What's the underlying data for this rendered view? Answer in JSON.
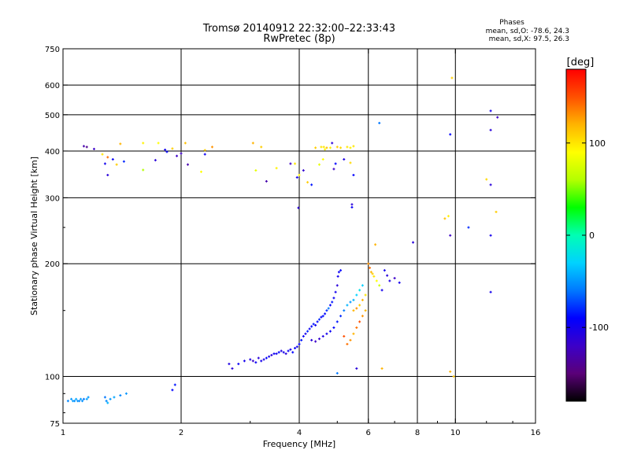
{
  "header": {
    "title": "Tromsø 20140912 22:32:00–22:33:43",
    "subtitle": "RwPretec (8p)",
    "phases_title": "Phases",
    "phases_o": "mean, sd,O:  -78.6,  24.3",
    "phases_x": "mean, sd,X:   97.5,  26.3"
  },
  "colorbar": {
    "label": "[deg]",
    "ticks": [
      {
        "value": 100,
        "label": "100"
      },
      {
        "value": 0,
        "label": "0"
      },
      {
        "value": -100,
        "label": "-100"
      }
    ],
    "range": [
      -180,
      180
    ],
    "stops": [
      "#000000",
      "#5a0078",
      "#3c00c8",
      "#0000ff",
      "#0078ff",
      "#00d2ff",
      "#00ffb4",
      "#00ff00",
      "#b4ff00",
      "#ffff00",
      "#ffb400",
      "#ff5000",
      "#ff0000"
    ]
  },
  "chart_data": {
    "type": "scatter",
    "title": "Tromsø 20140912 22:32:00–22:33:43",
    "subtitle": "RwPretec (8p)",
    "xlabel": "Frequency [MHz]",
    "ylabel": "Stationary phase Virtual Height [km]",
    "xscale": "log",
    "yscale": "log",
    "xlim": [
      1,
      16
    ],
    "ylim": [
      75,
      750
    ],
    "xticks": [
      {
        "value": 1,
        "label": "1"
      },
      {
        "value": 2,
        "label": "2"
      },
      {
        "value": 4,
        "label": "4"
      },
      {
        "value": 6,
        "label": "6"
      },
      {
        "value": 8,
        "label": "8"
      },
      {
        "value": 10,
        "label": "10"
      },
      {
        "value": 16,
        "label": "16"
      }
    ],
    "yticks": [
      {
        "value": 75,
        "label": "75"
      },
      {
        "value": 100,
        "label": "100"
      },
      {
        "value": 200,
        "label": "200"
      },
      {
        "value": 300,
        "label": "300"
      },
      {
        "value": 400,
        "label": "400"
      },
      {
        "value": 500,
        "label": "500"
      },
      {
        "value": 600,
        "label": "600"
      },
      {
        "value": 750,
        "label": "750"
      }
    ],
    "grid_x": [
      2,
      4,
      6,
      8,
      10
    ],
    "grid_y": [
      100,
      200,
      300,
      400,
      500,
      600
    ],
    "color_scale": "phase [deg], rainbow -180 to 180",
    "points": [
      [
        1.03,
        86,
        -55
      ],
      [
        1.05,
        87,
        -50
      ],
      [
        1.06,
        86,
        -48
      ],
      [
        1.07,
        86,
        -52
      ],
      [
        1.08,
        87,
        -45
      ],
      [
        1.09,
        86,
        -50
      ],
      [
        1.1,
        86,
        -55
      ],
      [
        1.11,
        87,
        -48
      ],
      [
        1.12,
        86,
        -52
      ],
      [
        1.13,
        87,
        -60
      ],
      [
        1.15,
        87,
        -45
      ],
      [
        1.16,
        88,
        -50
      ],
      [
        1.28,
        88,
        -60
      ],
      [
        1.29,
        86,
        -55
      ],
      [
        1.3,
        85,
        -40
      ],
      [
        1.32,
        87,
        -50
      ],
      [
        1.35,
        88,
        -45
      ],
      [
        1.4,
        89,
        -55
      ],
      [
        1.45,
        90,
        -50
      ],
      [
        1.9,
        92,
        -90
      ],
      [
        1.93,
        95,
        -85
      ],
      [
        1.13,
        412,
        -130
      ],
      [
        1.15,
        410,
        -140
      ],
      [
        1.2,
        405,
        -120
      ],
      [
        1.26,
        392,
        100
      ],
      [
        1.3,
        385,
        140
      ],
      [
        1.28,
        370,
        -100
      ],
      [
        1.3,
        345,
        -110
      ],
      [
        1.34,
        380,
        -95
      ],
      [
        1.37,
        368,
        110
      ],
      [
        1.4,
        418,
        120
      ],
      [
        1.43,
        375,
        -80
      ],
      [
        1.6,
        420,
        95
      ],
      [
        1.72,
        378,
        -110
      ],
      [
        1.6,
        356,
        60
      ],
      [
        1.75,
        420,
        90
      ],
      [
        1.82,
        403,
        -100
      ],
      [
        1.84,
        398,
        -90
      ],
      [
        1.9,
        406,
        110
      ],
      [
        1.95,
        388,
        -120
      ],
      [
        2.0,
        394,
        -120
      ],
      [
        2.05,
        420,
        115
      ],
      [
        2.08,
        368,
        -130
      ],
      [
        2.25,
        352,
        90
      ],
      [
        2.3,
        402,
        110
      ],
      [
        2.4,
        410,
        130
      ],
      [
        2.3,
        392,
        -95
      ],
      [
        3.05,
        420,
        120
      ],
      [
        3.1,
        355,
        80
      ],
      [
        3.2,
        410,
        110
      ],
      [
        3.3,
        332,
        -130
      ],
      [
        3.5,
        360,
        95
      ],
      [
        3.8,
        370,
        -120
      ],
      [
        3.9,
        370,
        100
      ],
      [
        3.95,
        340,
        -100
      ],
      [
        4.0,
        345,
        95
      ],
      [
        3.98,
        282,
        -110
      ],
      [
        4.1,
        355,
        -115
      ],
      [
        4.2,
        330,
        110
      ],
      [
        4.3,
        325,
        -85
      ],
      [
        4.4,
        408,
        110
      ],
      [
        4.5,
        368,
        80
      ],
      [
        4.55,
        410,
        100
      ],
      [
        4.6,
        380,
        90
      ],
      [
        4.62,
        410,
        100
      ],
      [
        4.65,
        404,
        90
      ],
      [
        4.7,
        408,
        115
      ],
      [
        4.8,
        408,
        95
      ],
      [
        4.85,
        420,
        -110
      ],
      [
        4.9,
        358,
        -120
      ],
      [
        4.95,
        370,
        -90
      ],
      [
        5.0,
        410,
        110
      ],
      [
        5.1,
        408,
        105
      ],
      [
        5.2,
        380,
        -105
      ],
      [
        5.3,
        410,
        100
      ],
      [
        5.4,
        408,
        95
      ],
      [
        5.5,
        412,
        100
      ],
      [
        5.4,
        372,
        105
      ],
      [
        5.5,
        345,
        -90
      ],
      [
        5.45,
        288,
        -110
      ],
      [
        5.45,
        283,
        -95
      ],
      [
        2.65,
        108,
        -105
      ],
      [
        2.7,
        105,
        -110
      ],
      [
        2.8,
        108,
        -95
      ],
      [
        2.9,
        110,
        -100
      ],
      [
        3.0,
        111,
        -105
      ],
      [
        3.05,
        110,
        -120
      ],
      [
        3.1,
        109,
        -95
      ],
      [
        3.15,
        112,
        -110
      ],
      [
        3.2,
        110,
        -100
      ],
      [
        3.25,
        111,
        -105
      ],
      [
        3.3,
        112,
        -90
      ],
      [
        3.35,
        113,
        -100
      ],
      [
        3.4,
        114,
        -110
      ],
      [
        3.45,
        115,
        -95
      ],
      [
        3.5,
        115,
        -100
      ],
      [
        3.55,
        116,
        -90
      ],
      [
        3.6,
        117,
        -105
      ],
      [
        3.65,
        116,
        -100
      ],
      [
        3.7,
        115,
        -110
      ],
      [
        3.75,
        117,
        -95
      ],
      [
        3.8,
        118,
        -100
      ],
      [
        3.85,
        116,
        -90
      ],
      [
        3.9,
        119,
        -95
      ],
      [
        3.95,
        120,
        -100
      ],
      [
        4.0,
        122,
        -90
      ],
      [
        4.05,
        125,
        -85
      ],
      [
        4.1,
        128,
        -95
      ],
      [
        4.15,
        130,
        -100
      ],
      [
        4.2,
        132,
        -80
      ],
      [
        4.25,
        134,
        -95
      ],
      [
        4.3,
        136,
        -90
      ],
      [
        4.35,
        138,
        -85
      ],
      [
        4.4,
        137,
        -100
      ],
      [
        4.45,
        140,
        -90
      ],
      [
        4.5,
        142,
        -80
      ],
      [
        4.55,
        144,
        -95
      ],
      [
        4.6,
        145,
        -85
      ],
      [
        4.65,
        147,
        -90
      ],
      [
        4.7,
        150,
        -80
      ],
      [
        4.75,
        152,
        -60
      ],
      [
        4.8,
        155,
        -90
      ],
      [
        4.85,
        158,
        -85
      ],
      [
        4.9,
        162,
        -95
      ],
      [
        4.95,
        168,
        -100
      ],
      [
        5.0,
        175,
        -110
      ],
      [
        5.02,
        185,
        -100
      ],
      [
        5.05,
        190,
        -95
      ],
      [
        5.1,
        192,
        -90
      ],
      [
        4.3,
        125,
        -110
      ],
      [
        4.4,
        124,
        -120
      ],
      [
        4.5,
        126,
        -115
      ],
      [
        4.6,
        128,
        -105
      ],
      [
        4.7,
        130,
        -100
      ],
      [
        4.8,
        132,
        -95
      ],
      [
        4.9,
        135,
        -90
      ],
      [
        5.0,
        140,
        -85
      ],
      [
        5.1,
        145,
        -80
      ],
      [
        5.2,
        150,
        -60
      ],
      [
        5.3,
        155,
        -40
      ],
      [
        5.4,
        158,
        -50
      ],
      [
        5.5,
        160,
        -40
      ],
      [
        5.6,
        165,
        -30
      ],
      [
        5.7,
        170,
        -20
      ],
      [
        5.8,
        175,
        -30
      ],
      [
        5.5,
        150,
        120
      ],
      [
        5.6,
        152,
        130
      ],
      [
        5.7,
        155,
        110
      ],
      [
        5.8,
        160,
        120
      ],
      [
        5.9,
        165,
        100
      ],
      [
        5.2,
        128,
        150
      ],
      [
        5.3,
        122,
        140
      ],
      [
        5.4,
        125,
        130
      ],
      [
        5.5,
        130,
        120
      ],
      [
        5.6,
        135,
        140
      ],
      [
        5.7,
        140,
        150
      ],
      [
        5.8,
        145,
        130
      ],
      [
        5.9,
        150,
        120
      ],
      [
        5.6,
        105,
        -110
      ],
      [
        5.0,
        102,
        -60
      ],
      [
        6.0,
        200,
        130
      ],
      [
        6.05,
        195,
        140
      ],
      [
        6.1,
        190,
        120
      ],
      [
        6.15,
        188,
        110
      ],
      [
        6.2,
        185,
        100
      ],
      [
        6.3,
        180,
        90
      ],
      [
        6.4,
        175,
        70
      ],
      [
        6.5,
        170,
        -100
      ],
      [
        6.6,
        192,
        -100
      ],
      [
        6.7,
        186,
        -110
      ],
      [
        6.8,
        180,
        -105
      ],
      [
        7.0,
        183,
        -120
      ],
      [
        7.2,
        178,
        -100
      ],
      [
        6.25,
        225,
        120
      ],
      [
        6.5,
        105,
        120
      ],
      [
        6.4,
        475,
        -60
      ],
      [
        7.8,
        228,
        -110
      ],
      [
        9.4,
        264,
        115
      ],
      [
        9.6,
        268,
        95
      ],
      [
        9.7,
        238,
        -120
      ],
      [
        9.7,
        443,
        -90
      ],
      [
        9.8,
        627,
        110
      ],
      [
        9.7,
        103,
        120
      ],
      [
        9.9,
        100,
        115
      ],
      [
        10.8,
        250,
        -80
      ],
      [
        12.0,
        336,
        105
      ],
      [
        12.3,
        325,
        -110
      ],
      [
        12.3,
        238,
        -100
      ],
      [
        12.3,
        168,
        -100
      ],
      [
        12.3,
        512,
        -100
      ],
      [
        12.3,
        455,
        -110
      ],
      [
        12.7,
        275,
        110
      ],
      [
        12.8,
        492,
        -120
      ]
    ]
  }
}
